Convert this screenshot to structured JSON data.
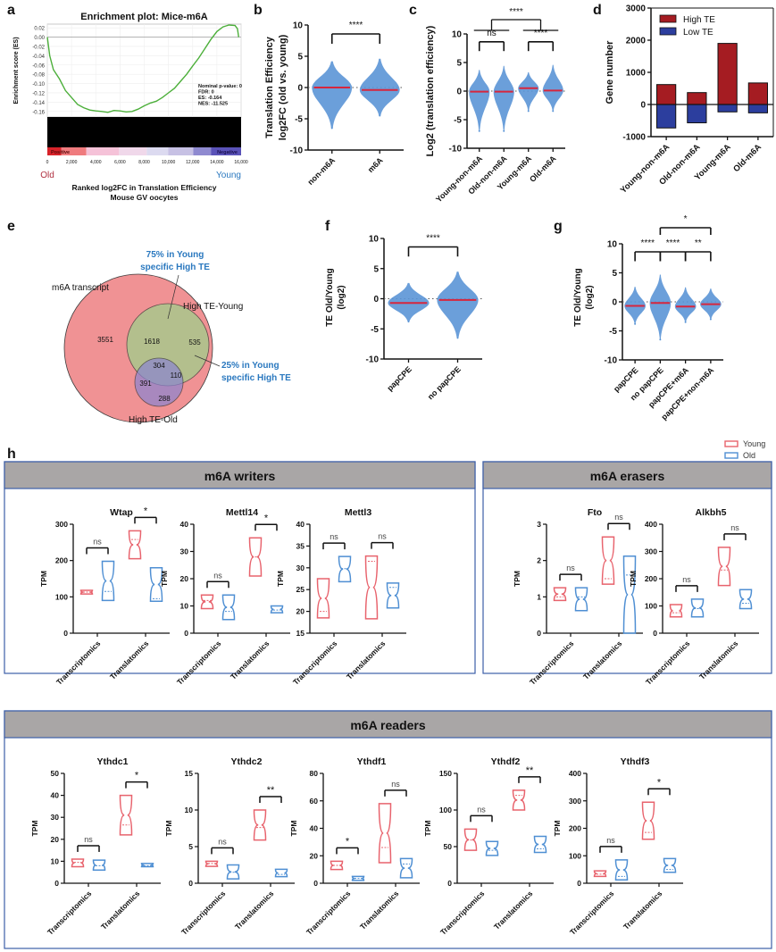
{
  "panel_labels": {
    "a": "a",
    "b": "b",
    "c": "c",
    "d": "d",
    "e": "e",
    "f": "f",
    "g": "g",
    "h": "h"
  },
  "colors": {
    "young": "#e8636d",
    "old": "#4f8fd3",
    "violin": "#5b95d6",
    "median": "#d7263d",
    "gsea_line": "#4caf3a",
    "high_te": "#a51c22",
    "low_te": "#2c3e9e",
    "header_bg": "#a9a6a6",
    "box_border": "#3d5fa8",
    "annot_blue": "#2a78bf",
    "old_red": "#b03040"
  },
  "chart_data": [
    {
      "id": "a",
      "type": "line",
      "title": "Enrichment plot: Mice-m6A",
      "ylabel": "Enrichment score (ES)",
      "xlabel": "Ranked log2FC in Translation Efficiency",
      "xlabel2": "Mouse GV oocytes",
      "yticks": [
        "0.02",
        "0.00",
        "-0.02",
        "-0.04",
        "-0.06",
        "-0.08",
        "-0.10",
        "-0.12",
        "-0.14",
        "-0.16"
      ],
      "ylim": [
        -0.172,
        0.028
      ],
      "xticks": [
        "0",
        "2,000",
        "4,000",
        "6,000",
        "8,000",
        "10,000",
        "12,000",
        "14,000",
        "16,000"
      ],
      "xlim": [
        0,
        16000
      ],
      "x": [
        0,
        200,
        500,
        1000,
        1500,
        2000,
        2500,
        3000,
        3500,
        4000,
        4500,
        5000,
        5500,
        6000,
        6500,
        7000,
        7500,
        8000,
        8500,
        9000,
        9500,
        10000,
        10500,
        11000,
        11500,
        12000,
        12500,
        13000,
        13500,
        14000,
        14500,
        15000,
        15500,
        15700,
        15800
      ],
      "y": [
        0,
        -0.04,
        -0.07,
        -0.09,
        -0.115,
        -0.13,
        -0.145,
        -0.152,
        -0.157,
        -0.159,
        -0.16,
        -0.162,
        -0.158,
        -0.159,
        -0.161,
        -0.16,
        -0.155,
        -0.148,
        -0.142,
        -0.138,
        -0.13,
        -0.12,
        -0.11,
        -0.095,
        -0.08,
        -0.062,
        -0.045,
        -0.025,
        -0.005,
        0.012,
        0.022,
        0.026,
        0.025,
        0.018,
        0.0
      ],
      "stats": [
        "Nominal p-value: 0",
        "FDR: 0",
        "ES: -0.164",
        "NES: -11.525"
      ],
      "bar_positive": "Positive",
      "bar_negative": "Negative",
      "left_label": "Old",
      "right_label": "Young"
    },
    {
      "id": "b",
      "type": "scatter",
      "ylabel": "Translation Efficiency log2FC (old vs. young)",
      "ylabel_lines": [
        "Translation Efficiency",
        "log2FC (old vs. young)"
      ],
      "yticks": [
        10,
        5,
        0,
        -5,
        -10
      ],
      "ylim": [
        -10,
        10
      ],
      "categories": [
        "non-m6A",
        "m6A"
      ],
      "medians": [
        0.0,
        -0.4
      ],
      "ranges": [
        [
          -6.5,
          4.2
        ],
        [
          -4.5,
          4.6
        ]
      ],
      "significance": [
        {
          "from": 0,
          "to": 1,
          "label": "****"
        }
      ]
    },
    {
      "id": "c",
      "type": "scatter",
      "ylabel": "Log2 (translation efficiency)",
      "yticks": [
        10,
        5,
        0,
        -5,
        -10
      ],
      "ylim": [
        -10,
        10
      ],
      "categories": [
        "Young-non-m6A",
        "Old-non-m6A",
        "Young-m6A",
        "Old-m6A"
      ],
      "medians": [
        -0.1,
        -0.1,
        0.5,
        0.1
      ],
      "ranges": [
        [
          -7,
          3.7
        ],
        [
          -7,
          4.4
        ],
        [
          -3.5,
          3.3
        ],
        [
          -3.5,
          4.6
        ]
      ],
      "significance": [
        {
          "from": 0,
          "to": 1,
          "label": "ns"
        },
        {
          "from": 2,
          "to": 3,
          "label": "****"
        },
        {
          "group1": [
            0,
            1
          ],
          "group2": [
            2,
            3
          ],
          "label": "****"
        }
      ]
    },
    {
      "id": "d",
      "type": "bar",
      "ylabel": "Gene number",
      "yticks": [
        3000,
        2000,
        1000,
        0,
        -1000
      ],
      "ylim": [
        -1000,
        3000
      ],
      "categories": [
        "Young-non-m6A",
        "Old-non-m6A",
        "Young-m6A",
        "Old-m6A"
      ],
      "series": [
        {
          "name": "High TE",
          "values": [
            620,
            370,
            1900,
            670
          ]
        },
        {
          "name": "Low TE",
          "values": [
            -730,
            -570,
            -230,
            -260
          ]
        }
      ],
      "legend": "top-left"
    },
    {
      "id": "e",
      "type": "venn",
      "sets": [
        "m6A transcript",
        "High TE-Young",
        "High TE-Old"
      ],
      "regions": {
        "m6A_only": "3551",
        "m6A_young": "1618",
        "young_only": "535",
        "all_three": "304",
        "young_old": "110",
        "m6A_old": "391",
        "old_only": "288"
      },
      "annotation_top": [
        "75% in Young",
        "specific High TE"
      ],
      "annotation_right": [
        "25% in Young",
        "specific High TE"
      ]
    },
    {
      "id": "f",
      "type": "scatter",
      "ylabel_lines": [
        "TE  Old/Young",
        "(log2)"
      ],
      "yticks": [
        10,
        5,
        0,
        -5,
        -10
      ],
      "ylim": [
        -10,
        10
      ],
      "categories": [
        "papCPE",
        "no papCPE"
      ],
      "medians": [
        -0.7,
        -0.2
      ],
      "ranges": [
        [
          -3.8,
          2.6
        ],
        [
          -6.5,
          4.5
        ]
      ],
      "significance": [
        {
          "from": 0,
          "to": 1,
          "label": "****"
        }
      ]
    },
    {
      "id": "g",
      "type": "scatter",
      "ylabel_lines": [
        "TE  Old/Young",
        "(log2)"
      ],
      "yticks": [
        10,
        5,
        0,
        -5,
        -10
      ],
      "ylim": [
        -10,
        10
      ],
      "categories": [
        "papCPE",
        "no papCPE",
        "papCPE+m6A",
        "papCPE+non-m6A"
      ],
      "medians": [
        -0.7,
        -0.2,
        -0.8,
        -0.4
      ],
      "ranges": [
        [
          -3.8,
          2.6
        ],
        [
          -6.5,
          4.7
        ],
        [
          -3.5,
          2.5
        ],
        [
          -3,
          2.3
        ]
      ],
      "significance": [
        {
          "from": 0,
          "to": 1,
          "label": "****"
        },
        {
          "from": 1,
          "to": 2,
          "label": "****"
        },
        {
          "from": 2,
          "to": 3,
          "label": "**"
        },
        {
          "from": 1,
          "to": 3,
          "label": "*"
        }
      ]
    },
    {
      "id": "h",
      "type": "violin",
      "legend": [
        {
          "name": "Young"
        },
        {
          "name": "Old"
        }
      ],
      "groups": [
        {
          "title": "m6A writers",
          "plots": [
            {
              "gene": "Wtap",
              "ylim": [
                0,
                300
              ],
              "yticks": [
                0,
                100,
                200,
                300
              ],
              "young": [
                [
                  108,
                  118,
                  113
                ],
                [
                  205,
                  282,
                  258
                ]
              ],
              "old": [
                [
                  90,
                  198,
                  115
                ],
                [
                  88,
                  180,
                  95
                ]
              ],
              "sig": [
                "ns",
                "*"
              ]
            },
            {
              "gene": "Mettl14",
              "ylim": [
                0,
                40
              ],
              "yticks": [
                0,
                10,
                20,
                30,
                40
              ],
              "young": [
                [
                  9,
                  14,
                  12
                ],
                [
                  21,
                  35,
                  28
                ]
              ],
              "old": [
                [
                  5,
                  14,
                  8
                ],
                [
                  7.5,
                  10,
                  8.5
                ]
              ],
              "sig": [
                "ns",
                "*"
              ]
            },
            {
              "gene": "Mettl3",
              "ylim": [
                15,
                40
              ],
              "yticks": [
                15,
                20,
                25,
                30,
                35,
                40
              ],
              "young": [
                [
                  18.5,
                  27.5,
                  20
                ],
                [
                  18.3,
                  32.7,
                  31.5
                ]
              ],
              "old": [
                [
                  26.8,
                  32.6,
                  29.8
                ],
                [
                  20.8,
                  26.5,
                  25.5
                ]
              ],
              "sig": [
                "ns",
                "ns"
              ]
            }
          ]
        },
        {
          "title": "m6A erasers",
          "plots": [
            {
              "gene": "Fto",
              "ylim": [
                0,
                3
              ],
              "yticks": [
                0,
                1,
                2,
                3
              ],
              "young": [
                [
                  0.9,
                  1.25,
                  1.0
                ],
                [
                  1.35,
                  2.65,
                  1.5
                ]
              ],
              "old": [
                [
                  0.62,
                  1.25,
                  1.0
                ],
                [
                  0,
                  2.12,
                  1.6
                ]
              ],
              "sig": [
                "ns",
                "ns"
              ]
            },
            {
              "gene": "Alkbh5",
              "ylim": [
                0,
                400
              ],
              "yticks": [
                0,
                100,
                200,
                300,
                400
              ],
              "young": [
                [
                  60,
                  105,
                  75
                ],
                [
                  175,
                  315,
                  232
                ]
              ],
              "old": [
                [
                  60,
                  125,
                  90
                ],
                [
                  90,
                  160,
                  110
                ]
              ],
              "sig": [
                "ns",
                "ns"
              ]
            }
          ]
        },
        {
          "title": "m6A readers",
          "plots": [
            {
              "gene": "Ythdc1",
              "ylim": [
                0,
                50
              ],
              "yticks": [
                0,
                10,
                20,
                30,
                40,
                50
              ],
              "young": [
                [
                  7.5,
                  11,
                  9.5
                ],
                [
                  22,
                  40,
                  26.5
                ]
              ],
              "old": [
                [
                  6,
                  10.5,
                  8
                ],
                [
                  7.5,
                  9,
                  8
                ]
              ],
              "sig": [
                "ns",
                "*"
              ]
            },
            {
              "gene": "Ythdc2",
              "ylim": [
                0,
                15
              ],
              "yticks": [
                0,
                5,
                10,
                15
              ],
              "young": [
                [
                  2.3,
                  3,
                  2.7
                ],
                [
                  5.9,
                  10,
                  7.6
                ]
              ],
              "old": [
                [
                  0.6,
                  2.5,
                  1.5
                ],
                [
                  0.9,
                  1.9,
                  1.2
                ]
              ],
              "sig": [
                "ns",
                "**"
              ]
            },
            {
              "gene": "Ythdf1",
              "ylim": [
                0,
                80
              ],
              "yticks": [
                0,
                20,
                40,
                60,
                80
              ],
              "young": [
                [
                  10,
                  16,
                  13
                ],
                [
                  15,
                  58,
                  26
                ]
              ],
              "old": [
                [
                  2,
                  5,
                  3.5
                ],
                [
                  4,
                  18,
                  14
                ]
              ],
              "sig": [
                "*",
                "ns"
              ]
            },
            {
              "gene": "Ythdf2",
              "ylim": [
                0,
                150
              ],
              "yticks": [
                0,
                50,
                100,
                150
              ],
              "young": [
                [
                  45,
                  74,
                  59
                ],
                [
                  100,
                  127,
                  120
                ]
              ],
              "old": [
                [
                  38,
                  57,
                  45
                ],
                [
                  42,
                  64,
                  47
                ]
              ],
              "sig": [
                "ns",
                "**"
              ]
            },
            {
              "gene": "Ythdf3",
              "ylim": [
                0,
                400
              ],
              "yticks": [
                0,
                100,
                200,
                300,
                400
              ],
              "young": [
                [
                  25,
                  45,
                  33
                ],
                [
                  160,
                  295,
                  185
                ]
              ],
              "old": [
                [
                  12,
                  85,
                  25
                ],
                [
                  40,
                  90,
                  50
                ]
              ],
              "sig": [
                "ns",
                "*"
              ]
            }
          ]
        }
      ],
      "ylabel": "TPM",
      "categories": [
        "Transcriptomics",
        "Translatomics"
      ]
    }
  ]
}
